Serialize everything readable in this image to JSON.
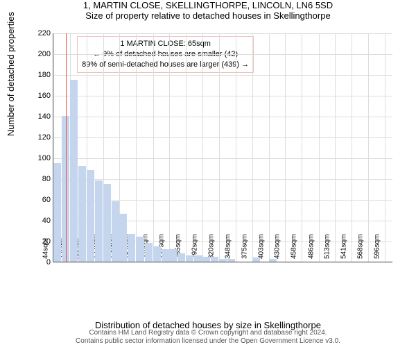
{
  "title": "1, MARTIN CLOSE, SKELLINGTHORPE, LINCOLN, LN6 5SD",
  "subtitle": "Size of property relative to detached houses in Skellingthorpe",
  "ylabel": "Number of detached properties",
  "xlabel": "Distribution of detached houses by size in Skellingthorpe",
  "chart": {
    "type": "histogram",
    "background_color": "#ffffff",
    "grid_color": "#dddddd",
    "bar_color": "#c4d5ed",
    "marker_color": "#e74c3c",
    "axis_color": "#666666",
    "title_fontsize": 13,
    "label_fontsize": 13,
    "tick_fontsize": 11,
    "ylim": [
      0,
      220
    ],
    "ytick_step": 20,
    "xlim": [
      44,
      610
    ],
    "xticks": [
      44,
      72,
      99,
      127,
      154,
      182,
      210,
      237,
      265,
      292,
      320,
      348,
      375,
      403,
      430,
      458,
      486,
      513,
      541,
      568,
      596
    ],
    "xtick_suffix": "sqm",
    "marker_x": 65,
    "bin_width": 14,
    "bins": [
      {
        "x": 44,
        "v": 95
      },
      {
        "x": 58,
        "v": 140
      },
      {
        "x": 72,
        "v": 175
      },
      {
        "x": 86,
        "v": 92
      },
      {
        "x": 99,
        "v": 88
      },
      {
        "x": 113,
        "v": 78
      },
      {
        "x": 127,
        "v": 75
      },
      {
        "x": 141,
        "v": 58
      },
      {
        "x": 154,
        "v": 46
      },
      {
        "x": 168,
        "v": 27
      },
      {
        "x": 182,
        "v": 24
      },
      {
        "x": 196,
        "v": 18
      },
      {
        "x": 210,
        "v": 15
      },
      {
        "x": 224,
        "v": 12
      },
      {
        "x": 237,
        "v": 12
      },
      {
        "x": 251,
        "v": 8
      },
      {
        "x": 265,
        "v": 6
      },
      {
        "x": 279,
        "v": 6
      },
      {
        "x": 292,
        "v": 5
      },
      {
        "x": 306,
        "v": 5
      },
      {
        "x": 320,
        "v": 3
      },
      {
        "x": 334,
        "v": 3
      },
      {
        "x": 348,
        "v": 0
      },
      {
        "x": 362,
        "v": 0
      },
      {
        "x": 375,
        "v": 4
      },
      {
        "x": 389,
        "v": 0
      },
      {
        "x": 403,
        "v": 3
      },
      {
        "x": 417,
        "v": 0
      },
      {
        "x": 430,
        "v": 0
      },
      {
        "x": 444,
        "v": 0
      },
      {
        "x": 458,
        "v": 0
      },
      {
        "x": 472,
        "v": 0
      },
      {
        "x": 486,
        "v": 0
      },
      {
        "x": 500,
        "v": 0
      },
      {
        "x": 513,
        "v": 0
      },
      {
        "x": 527,
        "v": 0
      },
      {
        "x": 541,
        "v": 0
      },
      {
        "x": 555,
        "v": 0
      },
      {
        "x": 568,
        "v": 0
      },
      {
        "x": 582,
        "v": 0
      },
      {
        "x": 596,
        "v": 0
      }
    ]
  },
  "annotation": {
    "line1": "1 MARTIN CLOSE: 65sqm",
    "line2": "← 9% of detached houses are smaller (42)",
    "line3": "89% of semi-detached houses are larger (439) →",
    "border_color": "#f0c0c0",
    "fontsize": 11
  },
  "footer": {
    "line1": "Contains HM Land Registry data © Crown copyright and database right 2024.",
    "line2": "Contains public sector information licensed under the Open Government Licence v3.0."
  }
}
